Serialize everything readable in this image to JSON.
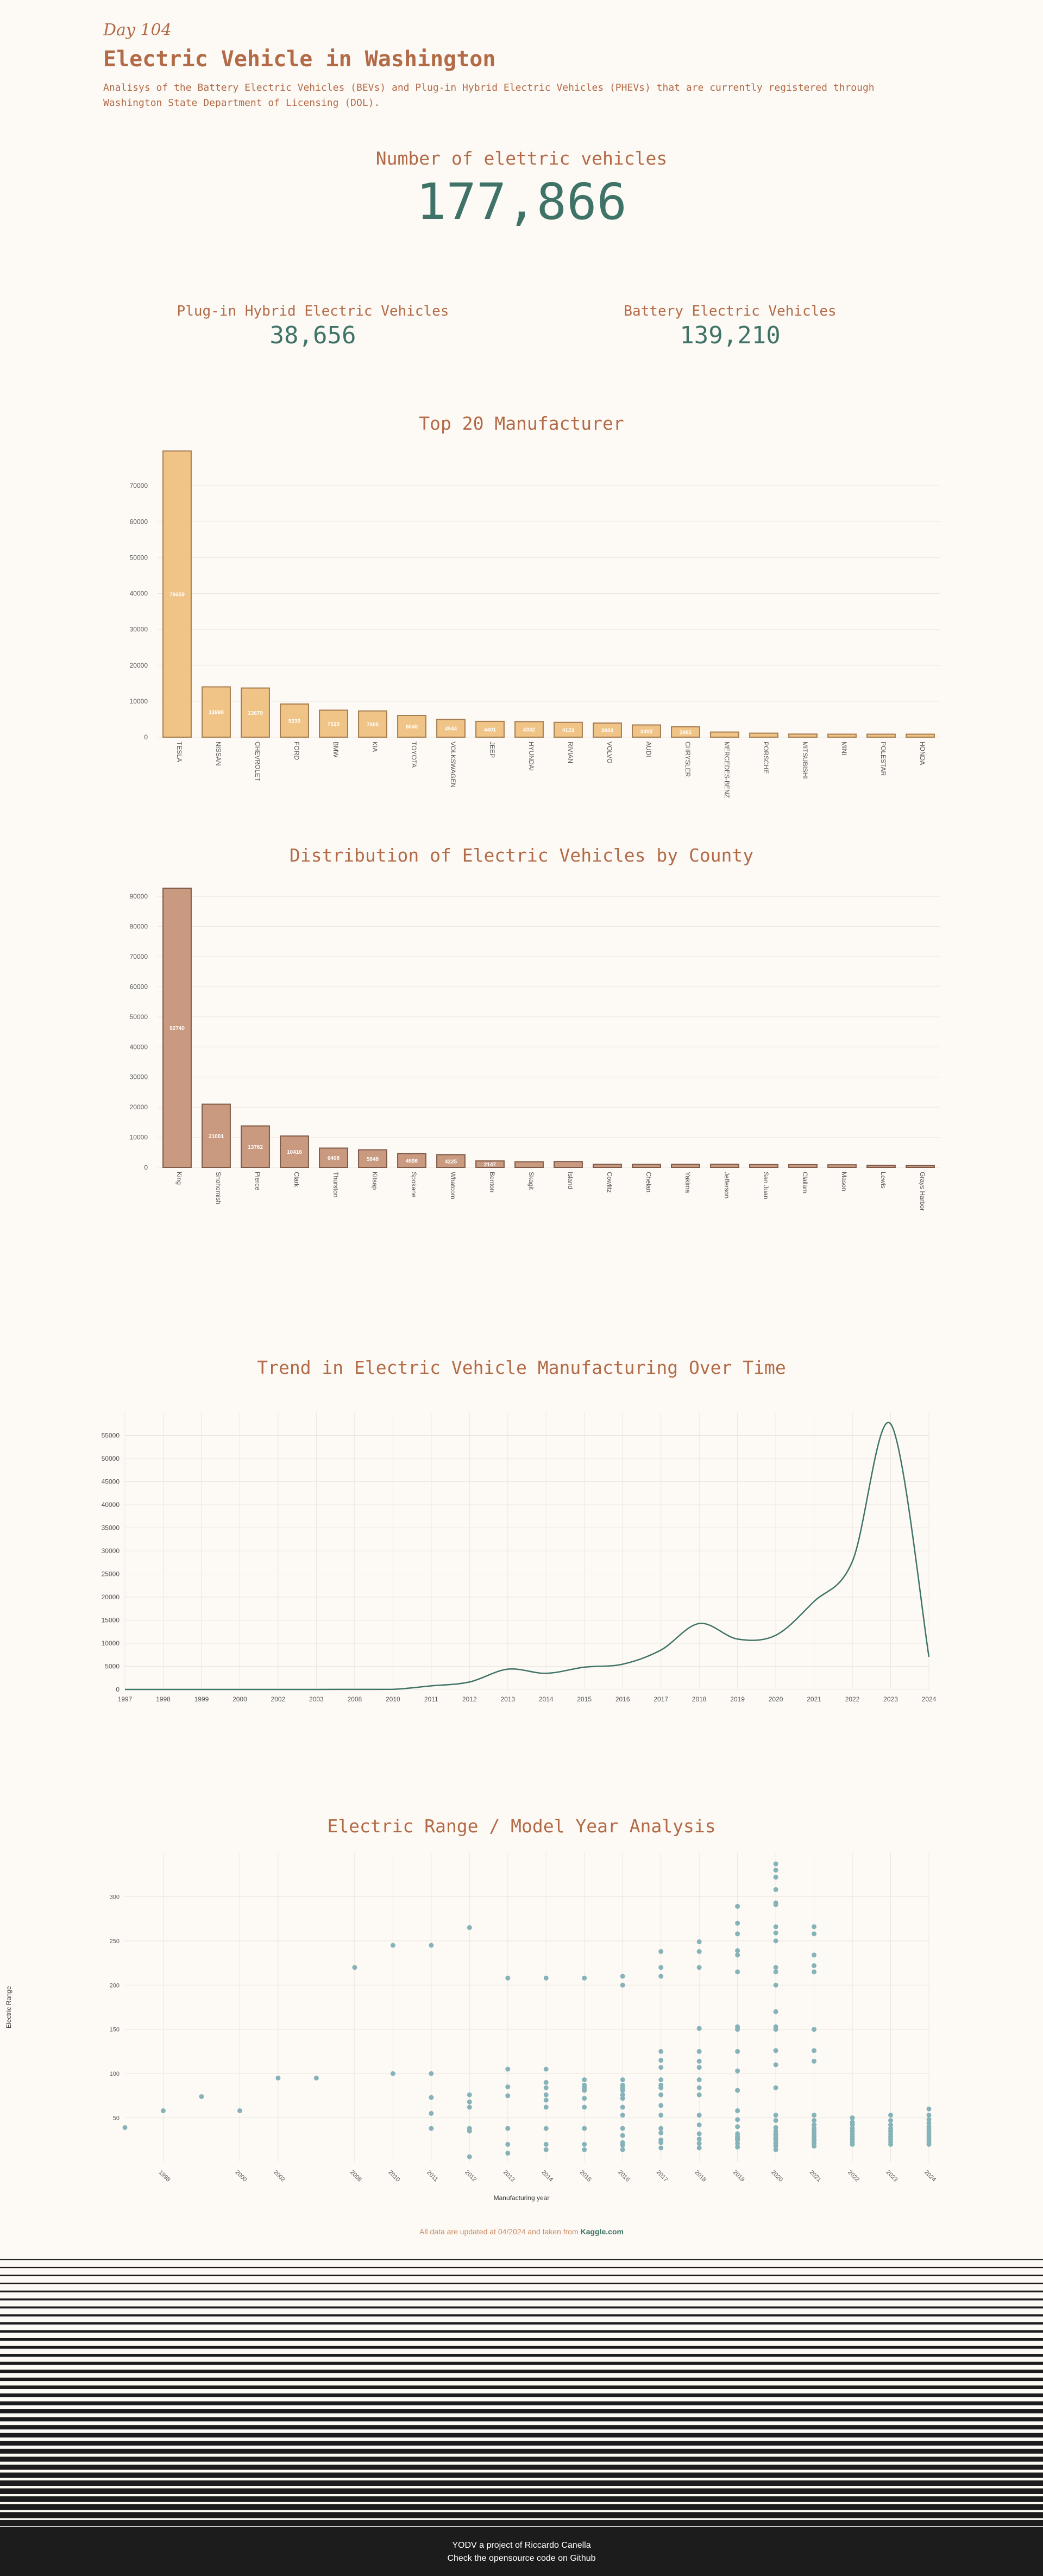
{
  "header": {
    "day": "Day 104",
    "title": "Electric Vehicle in Washington",
    "subtitle": "Analisys of the Battery Electric Vehicles (BEVs) and Plug-in Hybrid Electric Vehicles (PHEVs) that are currently registered through Washington State Department of Licensing (DOL)."
  },
  "totals": {
    "label": "Number of elettric vehicles",
    "value": "177,866",
    "phev_label": "Plug-in Hybrid Electric Vehicles",
    "phev_value": "38,656",
    "bev_label": "Battery Electric Vehicles",
    "bev_value": "139,210"
  },
  "colors": {
    "background": "#fdfaf5",
    "accent": "#b26a47",
    "value": "#3f7367",
    "manufacturer_bar": "#efc486",
    "county_bar": "#c99a80",
    "trend_line": "#3f7367",
    "scatter_point": "#86b3b9"
  },
  "chart_data": [
    {
      "type": "bar",
      "title": "Top 20 Manufacturer",
      "categories": [
        "TESLA",
        "NISSAN",
        "CHEVROLET",
        "FORD",
        "BMW",
        "KIA",
        "TOYOTA",
        "VOLKSWAGEN",
        "JEEP",
        "HYUNDAI",
        "RIVIAN",
        "VOLVO",
        "AUDI",
        "CHRYSLER",
        "MERCEDES-BENZ",
        "PORSCHE",
        "MITSUBISHI",
        "MINI",
        "POLESTAR",
        "HONDA"
      ],
      "values": [
        79659,
        13998,
        13679,
        9230,
        7510,
        7305,
        6048,
        4944,
        4401,
        4332,
        4123,
        3933,
        3400,
        2885,
        1430,
        1121,
        860,
        834,
        828,
        825
      ],
      "data_labels": [
        "79659",
        "13998",
        "13679",
        "9230",
        "7510",
        "7305",
        "6048",
        "4944",
        "4401",
        "4332",
        "4123",
        "3933",
        "3400",
        "2885",
        "",
        "",
        "",
        "",
        "",
        ""
      ],
      "y_ticks": [
        "0",
        "10000",
        "20000",
        "30000",
        "40000",
        "50000",
        "60000",
        "70000"
      ],
      "ylim": [
        0,
        80000
      ]
    },
    {
      "type": "bar",
      "title": "Distribution of Electric Vehicles by County",
      "categories": [
        "King",
        "Snohomish",
        "Pierce",
        "Clark",
        "Thurston",
        "Kitsap",
        "Spokane",
        "Whatcom",
        "Benton",
        "Skagit",
        "Island",
        "Cowlitz",
        "Chelan",
        "Yakima",
        "Jefferson",
        "San Juan",
        "Clallam",
        "Mason",
        "Lewis",
        "Grays Harbor"
      ],
      "values": [
        92740,
        21001,
        13782,
        10416,
        6408,
        5848,
        4596,
        4225,
        2147,
        1878,
        1944,
        1025,
        1003,
        1018,
        1037,
        944,
        925,
        876,
        697,
        619
      ],
      "data_labels": [
        "92740",
        "21001",
        "13782",
        "10416",
        "6408",
        "5848",
        "4596",
        "4225",
        "2147",
        "",
        "",
        "",
        "",
        "",
        "",
        "",
        "",
        "",
        "",
        ""
      ],
      "y_ticks": [
        "0",
        "10000",
        "20000",
        "30000",
        "40000",
        "50000",
        "60000",
        "70000",
        "80000",
        "90000"
      ],
      "ylim": [
        0,
        94000
      ]
    },
    {
      "type": "line",
      "title": "Trend in Electric Vehicle Manufacturing Over Time",
      "x": [
        1997,
        1998,
        1999,
        2000,
        2002,
        2003,
        2008,
        2010,
        2011,
        2012,
        2013,
        2014,
        2015,
        2016,
        2017,
        2018,
        2019,
        2020,
        2021,
        2022,
        2023,
        2024
      ],
      "y": [
        1,
        0,
        5,
        7,
        2,
        1,
        19,
        23,
        775,
        1614,
        4399,
        3496,
        4826,
        5469,
        8534,
        14286,
        10913,
        11740,
        19063,
        27708,
        57519,
        7072
      ],
      "x_ticks": [
        "1997",
        "1998",
        "1999",
        "2000",
        "2002",
        "2003",
        "2008",
        "2010",
        "2011",
        "2012",
        "2013",
        "2014",
        "2015",
        "2016",
        "2017",
        "2018",
        "2019",
        "2020",
        "2021",
        "2022",
        "2023",
        "2024"
      ],
      "y_ticks": [
        "0",
        "5000",
        "10000",
        "15000",
        "20000",
        "25000",
        "30000",
        "35000",
        "40000",
        "45000",
        "50000",
        "55000"
      ],
      "ylim": [
        0,
        60000
      ]
    },
    {
      "type": "scatter",
      "title": "Electric Range / Model Year Analysis",
      "xlabel": "Manufacturing year",
      "ylabel": "Electric Range",
      "x_ticks": [
        "1998",
        "2000",
        "2002",
        "2008",
        "2010",
        "2011",
        "2012",
        "2013",
        "2014",
        "2015",
        "2016",
        "2017",
        "2018",
        "2019",
        "2020",
        "2021",
        "2022",
        "2023",
        "2024"
      ],
      "y_ticks": [
        "50",
        "100",
        "150",
        "200",
        "250",
        "300"
      ],
      "ylim": [
        0,
        350
      ],
      "points": [
        {
          "x": 1997,
          "y": 39
        },
        {
          "x": 1998,
          "y": 58
        },
        {
          "x": 1999,
          "y": 74
        },
        {
          "x": 2000,
          "y": 58
        },
        {
          "x": 2002,
          "y": 95
        },
        {
          "x": 2003,
          "y": 95
        },
        {
          "x": 2008,
          "y": 220
        },
        {
          "x": 2010,
          "y": 245
        },
        {
          "x": 2010,
          "y": 100
        },
        {
          "x": 2011,
          "y": 245
        },
        {
          "x": 2011,
          "y": 100
        },
        {
          "x": 2011,
          "y": 73
        },
        {
          "x": 2011,
          "y": 55
        },
        {
          "x": 2011,
          "y": 38
        },
        {
          "x": 2012,
          "y": 265
        },
        {
          "x": 2012,
          "y": 76
        },
        {
          "x": 2012,
          "y": 68
        },
        {
          "x": 2012,
          "y": 62
        },
        {
          "x": 2012,
          "y": 38
        },
        {
          "x": 2012,
          "y": 35
        },
        {
          "x": 2012,
          "y": 6
        },
        {
          "x": 2013,
          "y": 208
        },
        {
          "x": 2013,
          "y": 105
        },
        {
          "x": 2013,
          "y": 85
        },
        {
          "x": 2013,
          "y": 75
        },
        {
          "x": 2013,
          "y": 38
        },
        {
          "x": 2013,
          "y": 20
        },
        {
          "x": 2013,
          "y": 10
        },
        {
          "x": 2014,
          "y": 208
        },
        {
          "x": 2014,
          "y": 105
        },
        {
          "x": 2014,
          "y": 90
        },
        {
          "x": 2014,
          "y": 84
        },
        {
          "x": 2014,
          "y": 76
        },
        {
          "x": 2014,
          "y": 70
        },
        {
          "x": 2014,
          "y": 62
        },
        {
          "x": 2014,
          "y": 38
        },
        {
          "x": 2014,
          "y": 20
        },
        {
          "x": 2014,
          "y": 14
        },
        {
          "x": 2015,
          "y": 208
        },
        {
          "x": 2015,
          "y": 93
        },
        {
          "x": 2015,
          "y": 87
        },
        {
          "x": 2015,
          "y": 84
        },
        {
          "x": 2015,
          "y": 81
        },
        {
          "x": 2015,
          "y": 72
        },
        {
          "x": 2015,
          "y": 62
        },
        {
          "x": 2015,
          "y": 38
        },
        {
          "x": 2015,
          "y": 20
        },
        {
          "x": 2015,
          "y": 14
        },
        {
          "x": 2016,
          "y": 210
        },
        {
          "x": 2016,
          "y": 200
        },
        {
          "x": 2016,
          "y": 93
        },
        {
          "x": 2016,
          "y": 87
        },
        {
          "x": 2016,
          "y": 84
        },
        {
          "x": 2016,
          "y": 81
        },
        {
          "x": 2016,
          "y": 76
        },
        {
          "x": 2016,
          "y": 72
        },
        {
          "x": 2016,
          "y": 62
        },
        {
          "x": 2016,
          "y": 53
        },
        {
          "x": 2016,
          "y": 38
        },
        {
          "x": 2016,
          "y": 30
        },
        {
          "x": 2016,
          "y": 22
        },
        {
          "x": 2016,
          "y": 19
        },
        {
          "x": 2016,
          "y": 14
        },
        {
          "x": 2017,
          "y": 238
        },
        {
          "x": 2017,
          "y": 220
        },
        {
          "x": 2017,
          "y": 210
        },
        {
          "x": 2017,
          "y": 125
        },
        {
          "x": 2017,
          "y": 115
        },
        {
          "x": 2017,
          "y": 107
        },
        {
          "x": 2017,
          "y": 93
        },
        {
          "x": 2017,
          "y": 87
        },
        {
          "x": 2017,
          "y": 84
        },
        {
          "x": 2017,
          "y": 76
        },
        {
          "x": 2017,
          "y": 64
        },
        {
          "x": 2017,
          "y": 53
        },
        {
          "x": 2017,
          "y": 38
        },
        {
          "x": 2017,
          "y": 33
        },
        {
          "x": 2017,
          "y": 25
        },
        {
          "x": 2017,
          "y": 22
        },
        {
          "x": 2017,
          "y": 16
        },
        {
          "x": 2018,
          "y": 249
        },
        {
          "x": 2018,
          "y": 238
        },
        {
          "x": 2018,
          "y": 220
        },
        {
          "x": 2018,
          "y": 151
        },
        {
          "x": 2018,
          "y": 125
        },
        {
          "x": 2018,
          "y": 114
        },
        {
          "x": 2018,
          "y": 107
        },
        {
          "x": 2018,
          "y": 93
        },
        {
          "x": 2018,
          "y": 84
        },
        {
          "x": 2018,
          "y": 76
        },
        {
          "x": 2018,
          "y": 53
        },
        {
          "x": 2018,
          "y": 42
        },
        {
          "x": 2018,
          "y": 32
        },
        {
          "x": 2018,
          "y": 26
        },
        {
          "x": 2018,
          "y": 21
        },
        {
          "x": 2018,
          "y": 16
        },
        {
          "x": 2019,
          "y": 289
        },
        {
          "x": 2019,
          "y": 270
        },
        {
          "x": 2019,
          "y": 258
        },
        {
          "x": 2019,
          "y": 239
        },
        {
          "x": 2019,
          "y": 234
        },
        {
          "x": 2019,
          "y": 215
        },
        {
          "x": 2019,
          "y": 153
        },
        {
          "x": 2019,
          "y": 150
        },
        {
          "x": 2019,
          "y": 125
        },
        {
          "x": 2019,
          "y": 103
        },
        {
          "x": 2019,
          "y": 81
        },
        {
          "x": 2019,
          "y": 58
        },
        {
          "x": 2019,
          "y": 48
        },
        {
          "x": 2019,
          "y": 40
        },
        {
          "x": 2019,
          "y": 32
        },
        {
          "x": 2019,
          "y": 29
        },
        {
          "x": 2019,
          "y": 27
        },
        {
          "x": 2019,
          "y": 26
        },
        {
          "x": 2019,
          "y": 25
        },
        {
          "x": 2019,
          "y": 21
        },
        {
          "x": 2019,
          "y": 17
        },
        {
          "x": 2020,
          "y": 337
        },
        {
          "x": 2020,
          "y": 330
        },
        {
          "x": 2020,
          "y": 322
        },
        {
          "x": 2020,
          "y": 308
        },
        {
          "x": 2020,
          "y": 293
        },
        {
          "x": 2020,
          "y": 291
        },
        {
          "x": 2020,
          "y": 266
        },
        {
          "x": 2020,
          "y": 259
        },
        {
          "x": 2020,
          "y": 250
        },
        {
          "x": 2020,
          "y": 220
        },
        {
          "x": 2020,
          "y": 215
        },
        {
          "x": 2020,
          "y": 200
        },
        {
          "x": 2020,
          "y": 170
        },
        {
          "x": 2020,
          "y": 153
        },
        {
          "x": 2020,
          "y": 150
        },
        {
          "x": 2020,
          "y": 126
        },
        {
          "x": 2020,
          "y": 110
        },
        {
          "x": 2020,
          "y": 84
        },
        {
          "x": 2020,
          "y": 53
        },
        {
          "x": 2020,
          "y": 47
        },
        {
          "x": 2020,
          "y": 39
        },
        {
          "x": 2020,
          "y": 35
        },
        {
          "x": 2020,
          "y": 32
        },
        {
          "x": 2020,
          "y": 30
        },
        {
          "x": 2020,
          "y": 27
        },
        {
          "x": 2020,
          "y": 25
        },
        {
          "x": 2020,
          "y": 22
        },
        {
          "x": 2020,
          "y": 21
        },
        {
          "x": 2020,
          "y": 18
        },
        {
          "x": 2020,
          "y": 14
        },
        {
          "x": 2021,
          "y": 266
        },
        {
          "x": 2021,
          "y": 258
        },
        {
          "x": 2021,
          "y": 234
        },
        {
          "x": 2021,
          "y": 222
        },
        {
          "x": 2021,
          "y": 215
        },
        {
          "x": 2021,
          "y": 150
        },
        {
          "x": 2021,
          "y": 126
        },
        {
          "x": 2021,
          "y": 114
        },
        {
          "x": 2021,
          "y": 53
        },
        {
          "x": 2021,
          "y": 47
        },
        {
          "x": 2021,
          "y": 42
        },
        {
          "x": 2021,
          "y": 38
        },
        {
          "x": 2021,
          "y": 35
        },
        {
          "x": 2021,
          "y": 32
        },
        {
          "x": 2021,
          "y": 29
        },
        {
          "x": 2021,
          "y": 26
        },
        {
          "x": 2021,
          "y": 24
        },
        {
          "x": 2021,
          "y": 21
        },
        {
          "x": 2021,
          "y": 18
        },
        {
          "x": 2022,
          "y": 50
        },
        {
          "x": 2022,
          "y": 45
        },
        {
          "x": 2022,
          "y": 42
        },
        {
          "x": 2022,
          "y": 38
        },
        {
          "x": 2022,
          "y": 35
        },
        {
          "x": 2022,
          "y": 32
        },
        {
          "x": 2022,
          "y": 29
        },
        {
          "x": 2022,
          "y": 26
        },
        {
          "x": 2022,
          "y": 23
        },
        {
          "x": 2022,
          "y": 20
        },
        {
          "x": 2023,
          "y": 53
        },
        {
          "x": 2023,
          "y": 47
        },
        {
          "x": 2023,
          "y": 42
        },
        {
          "x": 2023,
          "y": 38
        },
        {
          "x": 2023,
          "y": 35
        },
        {
          "x": 2023,
          "y": 32
        },
        {
          "x": 2023,
          "y": 29
        },
        {
          "x": 2023,
          "y": 26
        },
        {
          "x": 2023,
          "y": 23
        },
        {
          "x": 2023,
          "y": 20
        },
        {
          "x": 2024,
          "y": 60
        },
        {
          "x": 2024,
          "y": 53
        },
        {
          "x": 2024,
          "y": 48
        },
        {
          "x": 2024,
          "y": 44
        },
        {
          "x": 2024,
          "y": 40
        },
        {
          "x": 2024,
          "y": 37
        },
        {
          "x": 2024,
          "y": 34
        },
        {
          "x": 2024,
          "y": 31
        },
        {
          "x": 2024,
          "y": 28
        },
        {
          "x": 2024,
          "y": 25
        },
        {
          "x": 2024,
          "y": 22
        },
        {
          "x": 2024,
          "y": 20
        }
      ]
    }
  ],
  "note": {
    "text": "All data are updated at 04/2024 and taken from",
    "link": "Kaggle.com"
  },
  "footer": {
    "line1": "YODV a project of Riccardo Canella",
    "line2": "Check the opensource code on Github"
  }
}
